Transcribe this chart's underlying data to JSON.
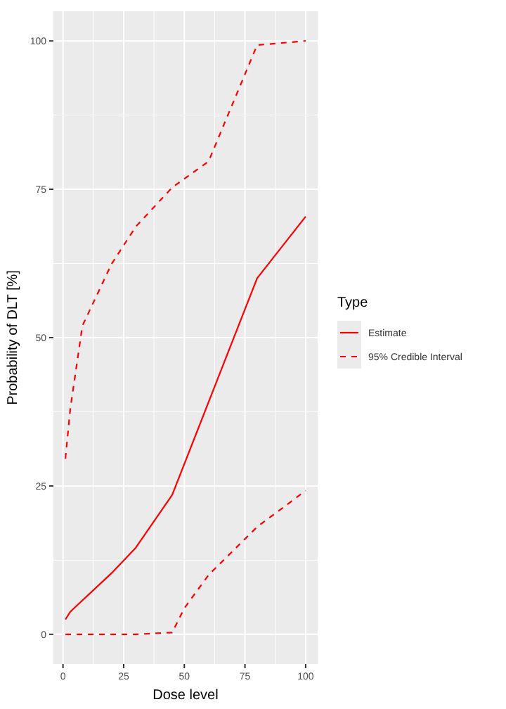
{
  "chart_data": {
    "type": "line",
    "xlabel": "Dose level",
    "ylabel": "Probability of DLT [%]",
    "legend_title": "Type",
    "series": [
      {
        "name": "Estimate",
        "color": "#ff0000",
        "line_style": "solid",
        "x": [
          1,
          3,
          20,
          30,
          45,
          80,
          100
        ],
        "values": [
          2.5,
          3.8,
          10.3,
          14.6,
          23.5,
          60,
          70.4
        ]
      },
      {
        "name": "95% Credible Interval",
        "color": "#ff0000",
        "line_style": "dashed",
        "x": [
          1,
          3,
          8,
          20,
          30,
          45,
          60,
          80,
          100
        ],
        "values": [
          29.6,
          38,
          52,
          62.4,
          68.7,
          75.3,
          79.7,
          99.3,
          100
        ]
      },
      {
        "color": "#ff0000",
        "line_style": "dashed",
        "x": [
          1,
          20,
          30,
          45,
          50,
          60,
          80,
          100
        ],
        "values": [
          0,
          0,
          0,
          0.3,
          4.4,
          10,
          18.1,
          24.2
        ]
      }
    ],
    "xlim": [
      -3.95,
      104.95
    ],
    "ylim": [
      -5,
      105
    ],
    "xticks": [
      0,
      25,
      50,
      75,
      100
    ],
    "yticks": [
      0,
      25,
      50,
      75,
      100
    ],
    "grid": true,
    "legend": "right"
  }
}
